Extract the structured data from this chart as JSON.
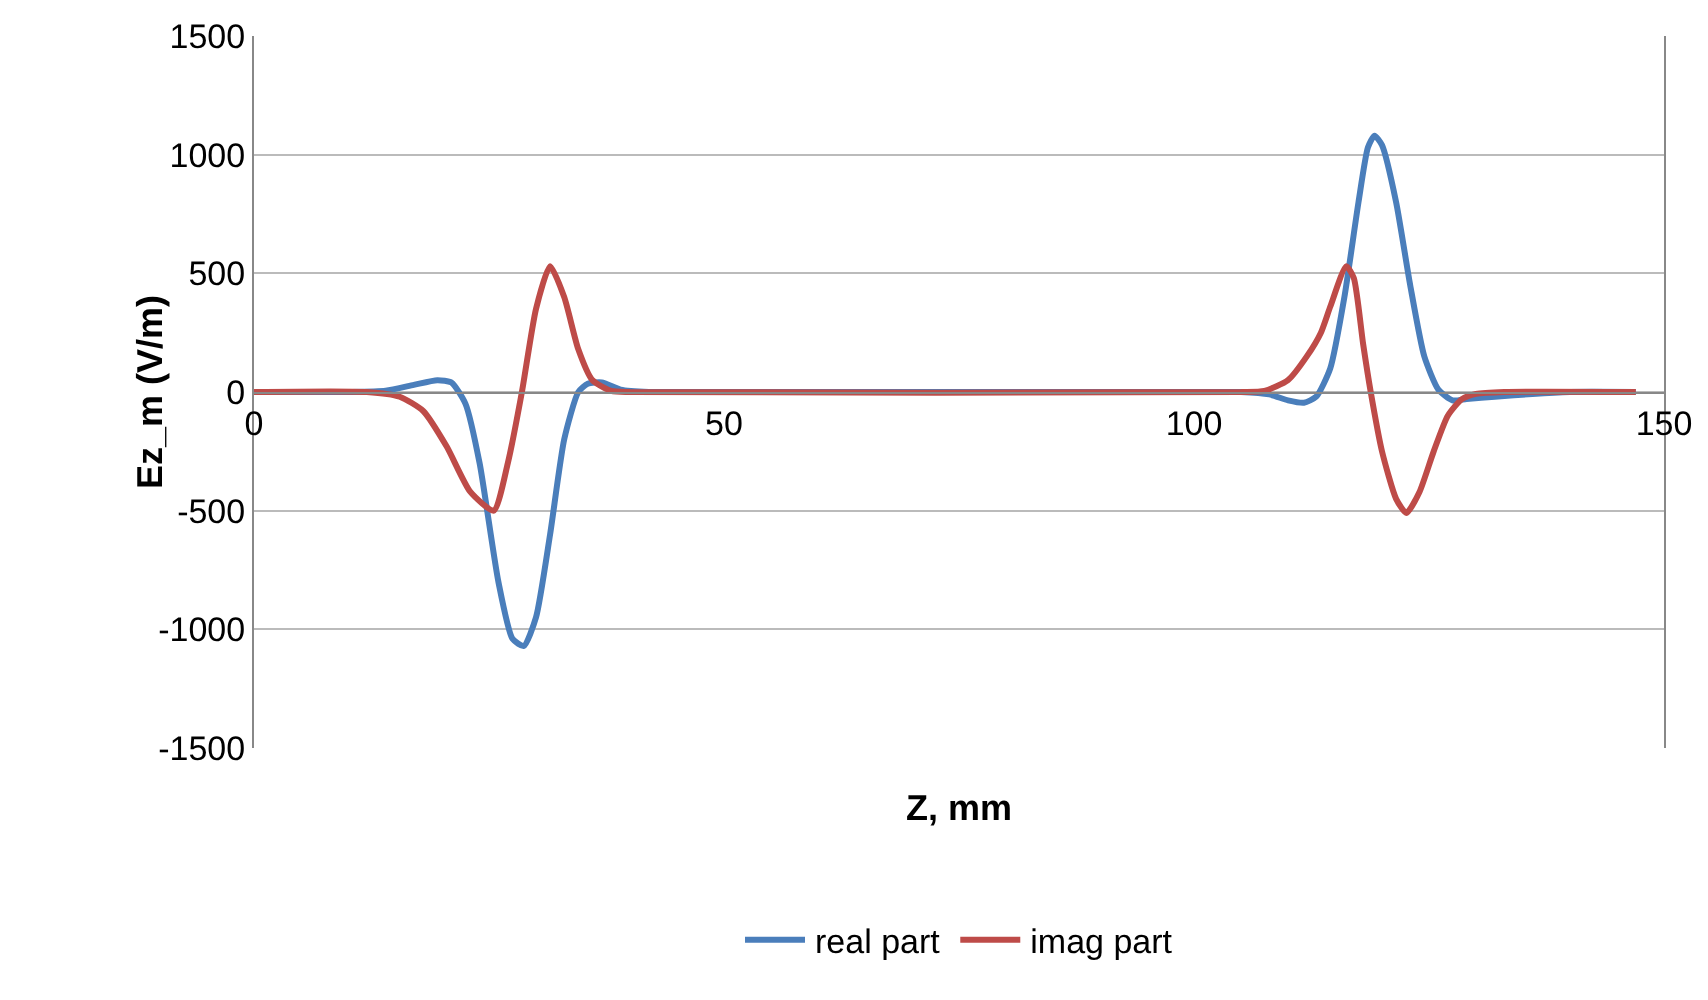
{
  "chart_data": {
    "type": "line",
    "xlabel": "Z, mm",
    "ylabel": "Ez_m (V/m)",
    "xlim": [
      0,
      150
    ],
    "xticks": [
      0,
      50,
      100,
      150
    ],
    "ylim": [
      -1500,
      1500
    ],
    "yticks": [
      -1500,
      -1000,
      -500,
      0,
      500,
      1000,
      1500
    ],
    "grid": "y",
    "legend": "bottom",
    "line_style": "solid",
    "marker": "none",
    "series": [
      {
        "name": "real part",
        "color": "#4a7ebb",
        "x": [
          0,
          10,
          14,
          17,
          19.5,
          21,
          22.5,
          24,
          26,
          27.5,
          28.7,
          30,
          31.5,
          33,
          34.5,
          35.5,
          37,
          39,
          42,
          105,
          108,
          110,
          111.7,
          113,
          114.5,
          116,
          117.5,
          118.5,
          119.2,
          120,
          121.5,
          123,
          124.5,
          126,
          127.5,
          129,
          132,
          136,
          140,
          147
        ],
        "values": [
          0,
          0,
          5,
          30,
          50,
          40,
          -50,
          -300,
          -800,
          -1040,
          -1070,
          -950,
          -600,
          -200,
          0,
          35,
          40,
          10,
          0,
          0,
          -10,
          -35,
          -45,
          -20,
          100,
          400,
          800,
          1030,
          1080,
          1040,
          800,
          450,
          150,
          10,
          -35,
          -30,
          -20,
          -8,
          0,
          0
        ]
      },
      {
        "name": "imag part",
        "color": "#be4b48",
        "x": [
          0,
          12,
          15.5,
          18,
          20.5,
          23,
          25.5,
          27,
          28.5,
          30,
          31.5,
          33,
          34.5,
          36,
          38,
          40,
          105,
          107.5,
          110,
          112,
          113.5,
          114.5,
          116.2,
          117,
          118,
          118.8,
          120,
          121.5,
          122.6,
          124,
          125.5,
          127,
          128.5,
          130,
          133,
          147
        ],
        "values": [
          0,
          0,
          -20,
          -80,
          -230,
          -420,
          -500,
          -300,
          0,
          350,
          530,
          400,
          180,
          50,
          5,
          0,
          0,
          5,
          50,
          150,
          250,
          360,
          530,
          480,
          200,
          0,
          -250,
          -450,
          -510,
          -420,
          -250,
          -100,
          -30,
          -8,
          0,
          0
        ]
      }
    ]
  }
}
